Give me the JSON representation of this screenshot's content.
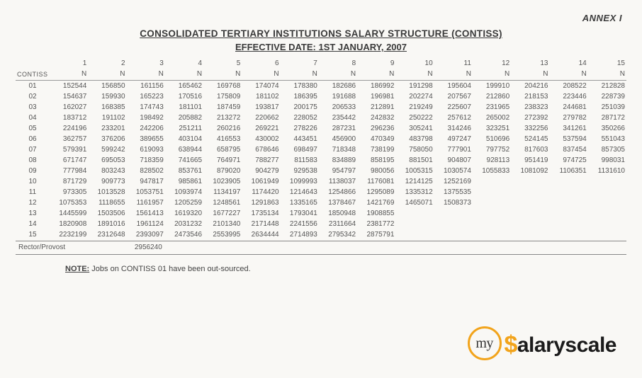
{
  "annex": "ANNEX I",
  "title_line1": "CONSOLIDATED TERTIARY INSTITUTIONS SALARY STRUCTURE (CONTISS)",
  "title_line2": "EFFECTIVE DATE: 1ST JANUARY, 2007",
  "table": {
    "row_header": "CONTISS",
    "currency_unit": "N",
    "steps": [
      "1",
      "2",
      "3",
      "4",
      "5",
      "6",
      "7",
      "8",
      "9",
      "10",
      "11",
      "12",
      "13",
      "14",
      "15"
    ],
    "rows": [
      {
        "level": "01",
        "values": [
          "152544",
          "156850",
          "161156",
          "165462",
          "169768",
          "174074",
          "178380",
          "182686",
          "186992",
          "191298",
          "195604",
          "199910",
          "204216",
          "208522",
          "212828"
        ]
      },
      {
        "level": "02",
        "values": [
          "154637",
          "159930",
          "165223",
          "170516",
          "175809",
          "181102",
          "186395",
          "191688",
          "196981",
          "202274",
          "207567",
          "212860",
          "218153",
          "223446",
          "228739"
        ]
      },
      {
        "level": "03",
        "values": [
          "162027",
          "168385",
          "174743",
          "181101",
          "187459",
          "193817",
          "200175",
          "206533",
          "212891",
          "219249",
          "225607",
          "231965",
          "238323",
          "244681",
          "251039"
        ]
      },
      {
        "level": "04",
        "values": [
          "183712",
          "191102",
          "198492",
          "205882",
          "213272",
          "220662",
          "228052",
          "235442",
          "242832",
          "250222",
          "257612",
          "265002",
          "272392",
          "279782",
          "287172"
        ]
      },
      {
        "level": "05",
        "values": [
          "224196",
          "233201",
          "242206",
          "251211",
          "260216",
          "269221",
          "278226",
          "287231",
          "296236",
          "305241",
          "314246",
          "323251",
          "332256",
          "341261",
          "350266"
        ]
      },
      {
        "level": "06",
        "values": [
          "362757",
          "376206",
          "389655",
          "403104",
          "416553",
          "430002",
          "443451",
          "456900",
          "470349",
          "483798",
          "497247",
          "510696",
          "524145",
          "537594",
          "551043"
        ]
      },
      {
        "level": "07",
        "values": [
          "579391",
          "599242",
          "619093",
          "638944",
          "658795",
          "678646",
          "698497",
          "718348",
          "738199",
          "758050",
          "777901",
          "797752",
          "817603",
          "837454",
          "857305"
        ]
      },
      {
        "level": "08",
        "values": [
          "671747",
          "695053",
          "718359",
          "741665",
          "764971",
          "788277",
          "811583",
          "834889",
          "858195",
          "881501",
          "904807",
          "928113",
          "951419",
          "974725",
          "998031"
        ]
      },
      {
        "level": "09",
        "values": [
          "777984",
          "803243",
          "828502",
          "853761",
          "879020",
          "904279",
          "929538",
          "954797",
          "980056",
          "1005315",
          "1030574",
          "1055833",
          "1081092",
          "1106351",
          "1131610"
        ]
      },
      {
        "level": "10",
        "values": [
          "871729",
          "909773",
          "947817",
          "985861",
          "1023905",
          "1061949",
          "1099993",
          "1138037",
          "1176081",
          "1214125",
          "1252169",
          "",
          "",
          "",
          ""
        ]
      },
      {
        "level": "11",
        "values": [
          "973305",
          "1013528",
          "1053751",
          "1093974",
          "1134197",
          "1174420",
          "1214643",
          "1254866",
          "1295089",
          "1335312",
          "1375535",
          "",
          "",
          "",
          ""
        ]
      },
      {
        "level": "12",
        "values": [
          "1075353",
          "1118655",
          "1161957",
          "1205259",
          "1248561",
          "1291863",
          "1335165",
          "1378467",
          "1421769",
          "1465071",
          "1508373",
          "",
          "",
          "",
          ""
        ]
      },
      {
        "level": "13",
        "values": [
          "1445599",
          "1503506",
          "1561413",
          "1619320",
          "1677227",
          "1735134",
          "1793041",
          "1850948",
          "1908855",
          "",
          "",
          "",
          "",
          "",
          ""
        ]
      },
      {
        "level": "14",
        "values": [
          "1820908",
          "1891016",
          "1961124",
          "2031232",
          "2101340",
          "2171448",
          "2241556",
          "2311664",
          "2381772",
          "",
          "",
          "",
          "",
          "",
          ""
        ]
      },
      {
        "level": "15",
        "values": [
          "2232199",
          "2312648",
          "2393097",
          "2473546",
          "2553995",
          "2634444",
          "2714893",
          "2795342",
          "2875791",
          "",
          "",
          "",
          "",
          "",
          ""
        ]
      }
    ]
  },
  "rector": {
    "label": "Rector/Provost",
    "value": "2956240"
  },
  "note": {
    "label": "NOTE:",
    "text": "Jobs on CONTISS 01 have been out-sourced."
  },
  "logo": {
    "badge": "my",
    "word_first_glyph": "$",
    "word_rest": "alaryscale"
  }
}
